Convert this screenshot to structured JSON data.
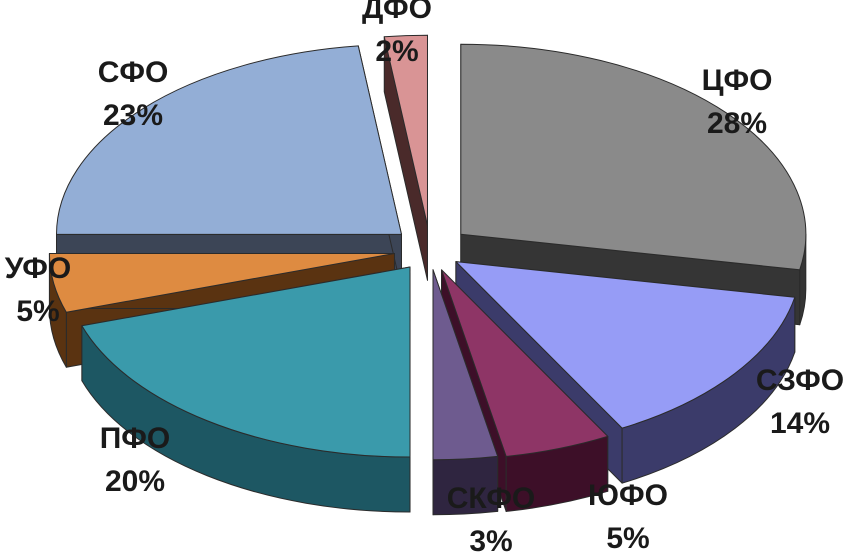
{
  "chart_data": {
    "type": "pie",
    "title": "",
    "style": "3d-exploded",
    "slices": [
      {
        "label": "ЦФО",
        "value": 28,
        "value_label": "28%",
        "color": "#8a8a8a",
        "side_color": "#353535"
      },
      {
        "label": "СЗФО",
        "value": 14,
        "value_label": "14%",
        "color": "#969cf6",
        "side_color": "#3b3b6a"
      },
      {
        "label": "ЮФО",
        "value": 5,
        "value_label": "5%",
        "color": "#8e3566",
        "side_color": "#3d0f28"
      },
      {
        "label": "СКФО",
        "value": 3,
        "value_label": "3%",
        "color": "#6e5b8f",
        "side_color": "#2f2540"
      },
      {
        "label": "ПФО",
        "value": 20,
        "value_label": "20%",
        "color": "#3a9aab",
        "side_color": "#1d5763"
      },
      {
        "label": "УФО",
        "value": 5,
        "value_label": "5%",
        "color": "#de8b41",
        "side_color": "#5a3311"
      },
      {
        "label": "СФО",
        "value": 23,
        "value_label": "23%",
        "color": "#93aed6",
        "side_color": "#3c4556"
      },
      {
        "label": "ДФО",
        "value": 2,
        "value_label": "2%",
        "color": "#d99495",
        "side_color": "#4a2a2a"
      }
    ]
  }
}
